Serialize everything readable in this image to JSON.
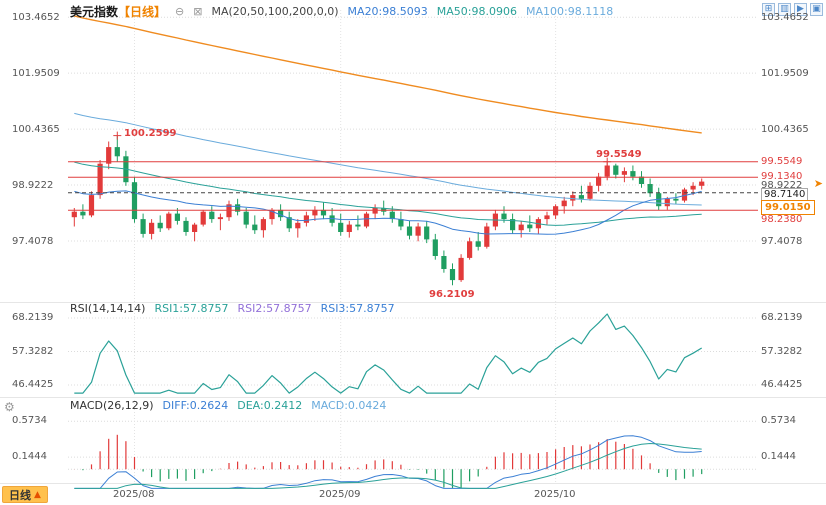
{
  "colors": {
    "up": "#e23a3a",
    "down": "#1f9e61",
    "ma20": "#3b7fd4",
    "ma50": "#2aa198",
    "ma100": "#6aabdc",
    "ma200": "#ef8b20",
    "rsi": "#2aa198",
    "level": "#e03e3e",
    "accent": "#f08300"
  },
  "icons": {
    "collapse": "⊖",
    "ma_toggle": "⊠",
    "layout": [
      "⊞",
      "▥",
      "▶",
      "▣"
    ],
    "gear": "⚙",
    "jump": "➤",
    "period_arrow": "▲"
  },
  "header": {
    "title": "美元指数",
    "period": "【日线】",
    "ma_label": "MA(20,50,100,200,0,0)",
    "ma20": "MA20:98.5093",
    "ma50": "MA50:98.0906",
    "ma100": "MA100:98.1118"
  },
  "main": {
    "axis_left": [
      "103.4652",
      "101.9509",
      "100.4365",
      "98.9222",
      "97.4078"
    ],
    "levels": {
      "r1": "99.5549",
      "r2": "99.1340",
      "mid": "98.9222",
      "prev": "98.7140",
      "last": "99.0150",
      "s1": "98.2380"
    },
    "annotations": {
      "peak": "100.2599",
      "high": "99.5549",
      "low": "96.2109"
    }
  },
  "rsi": {
    "title": "RSI(14,14,14)",
    "rsi1": "RSI1:57.8757",
    "rsi2": "RSI2:57.8757",
    "rsi3": "RSI3:57.8757",
    "axis": [
      "68.2139",
      "57.3282",
      "46.4425"
    ]
  },
  "macd": {
    "title": "MACD(26,12,9)",
    "diff": "DIFF:0.2624",
    "dea": "DEA:0.2412",
    "val": "MACD:0.0424",
    "axis": [
      "0.5734",
      "0.1444"
    ]
  },
  "bottom": {
    "period": "日线",
    "months": [
      "2025/08",
      "2025/09",
      "2025/10"
    ]
  },
  "chart_data": {
    "type": "candlestick",
    "symbol": "美元指数 (US Dollar Index)",
    "interval": "daily",
    "y_axis_ticks": [
      103.4652,
      101.9509,
      100.4365,
      98.9222,
      97.4078
    ],
    "rsi_axis": [
      68.2139,
      57.3282,
      46.4425
    ],
    "macd_axis": [
      0.5734,
      0.1444
    ],
    "x_months": [
      {
        "label": "2025/08",
        "index": 7
      },
      {
        "label": "2025/09",
        "index": 31
      },
      {
        "label": "2025/10",
        "index": 56
      }
    ],
    "levels": {
      "resistance": [
        99.5549,
        99.134
      ],
      "support": [
        98.238
      ],
      "dashed": 98.714,
      "last_price": 99.015
    },
    "annotations": {
      "peak_high": 100.2599,
      "recent_high": 99.5549,
      "low": 96.2109
    },
    "indicators": {
      "MA20": 98.5093,
      "MA50": 98.0906,
      "MA100": 98.1118,
      "RSI1": 57.8757,
      "RSI2": 57.8757,
      "RSI3": 57.8757,
      "DIFF": 0.2624,
      "DEA": 0.2412,
      "MACD": 0.0424
    },
    "candles": [
      [
        98.05,
        98.3,
        97.8,
        98.2
      ],
      [
        98.2,
        98.4,
        98.0,
        98.1
      ],
      [
        98.1,
        98.75,
        98.05,
        98.65
      ],
      [
        98.65,
        99.6,
        98.55,
        99.5
      ],
      [
        99.5,
        100.1,
        99.35,
        99.95
      ],
      [
        99.95,
        100.2599,
        99.55,
        99.7
      ],
      [
        99.7,
        99.85,
        98.9,
        99.0
      ],
      [
        99.0,
        99.15,
        97.9,
        98.0
      ],
      [
        98.0,
        98.15,
        97.5,
        97.6
      ],
      [
        97.6,
        98.0,
        97.45,
        97.9
      ],
      [
        97.9,
        98.1,
        97.65,
        97.75
      ],
      [
        97.75,
        98.2,
        97.7,
        98.15
      ],
      [
        98.15,
        98.3,
        97.85,
        97.95
      ],
      [
        97.95,
        98.05,
        97.55,
        97.65
      ],
      [
        97.65,
        97.9,
        97.4,
        97.85
      ],
      [
        97.85,
        98.25,
        97.8,
        98.2
      ],
      [
        98.2,
        98.35,
        97.9,
        98.0
      ],
      [
        98.0,
        98.15,
        97.7,
        98.05
      ],
      [
        98.05,
        98.5,
        97.95,
        98.4
      ],
      [
        98.4,
        98.55,
        98.1,
        98.2
      ],
      [
        98.2,
        98.3,
        97.75,
        97.85
      ],
      [
        97.85,
        98.1,
        97.6,
        97.7
      ],
      [
        97.7,
        98.05,
        97.5,
        98.0
      ],
      [
        98.0,
        98.3,
        97.85,
        98.25
      ],
      [
        98.25,
        98.4,
        97.95,
        98.05
      ],
      [
        98.05,
        98.2,
        97.65,
        97.75
      ],
      [
        97.75,
        98.0,
        97.5,
        97.9
      ],
      [
        97.9,
        98.2,
        97.8,
        98.1
      ],
      [
        98.1,
        98.35,
        97.95,
        98.25
      ],
      [
        98.25,
        98.45,
        98.0,
        98.1
      ],
      [
        98.1,
        98.3,
        97.8,
        97.9
      ],
      [
        97.9,
        98.15,
        97.55,
        97.65
      ],
      [
        97.65,
        97.95,
        97.5,
        97.85
      ],
      [
        97.85,
        98.1,
        97.7,
        97.8
      ],
      [
        97.8,
        98.2,
        97.75,
        98.15
      ],
      [
        98.15,
        98.4,
        98.0,
        98.3
      ],
      [
        98.3,
        98.5,
        98.1,
        98.2
      ],
      [
        98.2,
        98.35,
        97.9,
        98.0
      ],
      [
        98.0,
        98.2,
        97.7,
        97.8
      ],
      [
        97.8,
        97.95,
        97.45,
        97.55
      ],
      [
        97.55,
        97.9,
        97.4,
        97.8
      ],
      [
        97.8,
        97.95,
        97.35,
        97.45
      ],
      [
        97.45,
        97.6,
        96.9,
        97.0
      ],
      [
        97.0,
        97.15,
        96.55,
        96.65
      ],
      [
        96.65,
        96.8,
        96.2109,
        96.35
      ],
      [
        96.35,
        97.05,
        96.3,
        96.95
      ],
      [
        96.95,
        97.5,
        96.9,
        97.4
      ],
      [
        97.4,
        97.65,
        97.15,
        97.25
      ],
      [
        97.25,
        97.9,
        97.2,
        97.8
      ],
      [
        97.8,
        98.25,
        97.7,
        98.15
      ],
      [
        98.15,
        98.35,
        97.9,
        98.0
      ],
      [
        98.0,
        98.15,
        97.6,
        97.7
      ],
      [
        97.7,
        97.95,
        97.5,
        97.85
      ],
      [
        97.85,
        98.1,
        97.65,
        97.75
      ],
      [
        97.75,
        98.05,
        97.6,
        98.0
      ],
      [
        98.0,
        98.2,
        97.85,
        98.1
      ],
      [
        98.1,
        98.4,
        98.0,
        98.35
      ],
      [
        98.35,
        98.6,
        98.15,
        98.5
      ],
      [
        98.5,
        98.75,
        98.35,
        98.65
      ],
      [
        98.65,
        98.9,
        98.45,
        98.55
      ],
      [
        98.55,
        99.0,
        98.5,
        98.9
      ],
      [
        98.9,
        99.25,
        98.75,
        99.15
      ],
      [
        99.15,
        99.5549,
        99.05,
        99.45
      ],
      [
        99.45,
        99.5,
        99.1,
        99.2
      ],
      [
        99.2,
        99.4,
        99.0,
        99.3
      ],
      [
        99.3,
        99.45,
        99.05,
        99.15
      ],
      [
        99.15,
        99.3,
        98.85,
        98.95
      ],
      [
        98.95,
        99.1,
        98.6,
        98.7
      ],
      [
        98.7,
        98.85,
        98.238,
        98.35
      ],
      [
        98.35,
        98.6,
        98.25,
        98.55
      ],
      [
        98.55,
        98.7,
        98.4,
        98.5
      ],
      [
        98.5,
        98.85,
        98.45,
        98.8
      ],
      [
        98.8,
        99.0,
        98.65,
        98.9
      ],
      [
        98.9,
        99.1,
        98.8,
        99.015
      ]
    ]
  }
}
